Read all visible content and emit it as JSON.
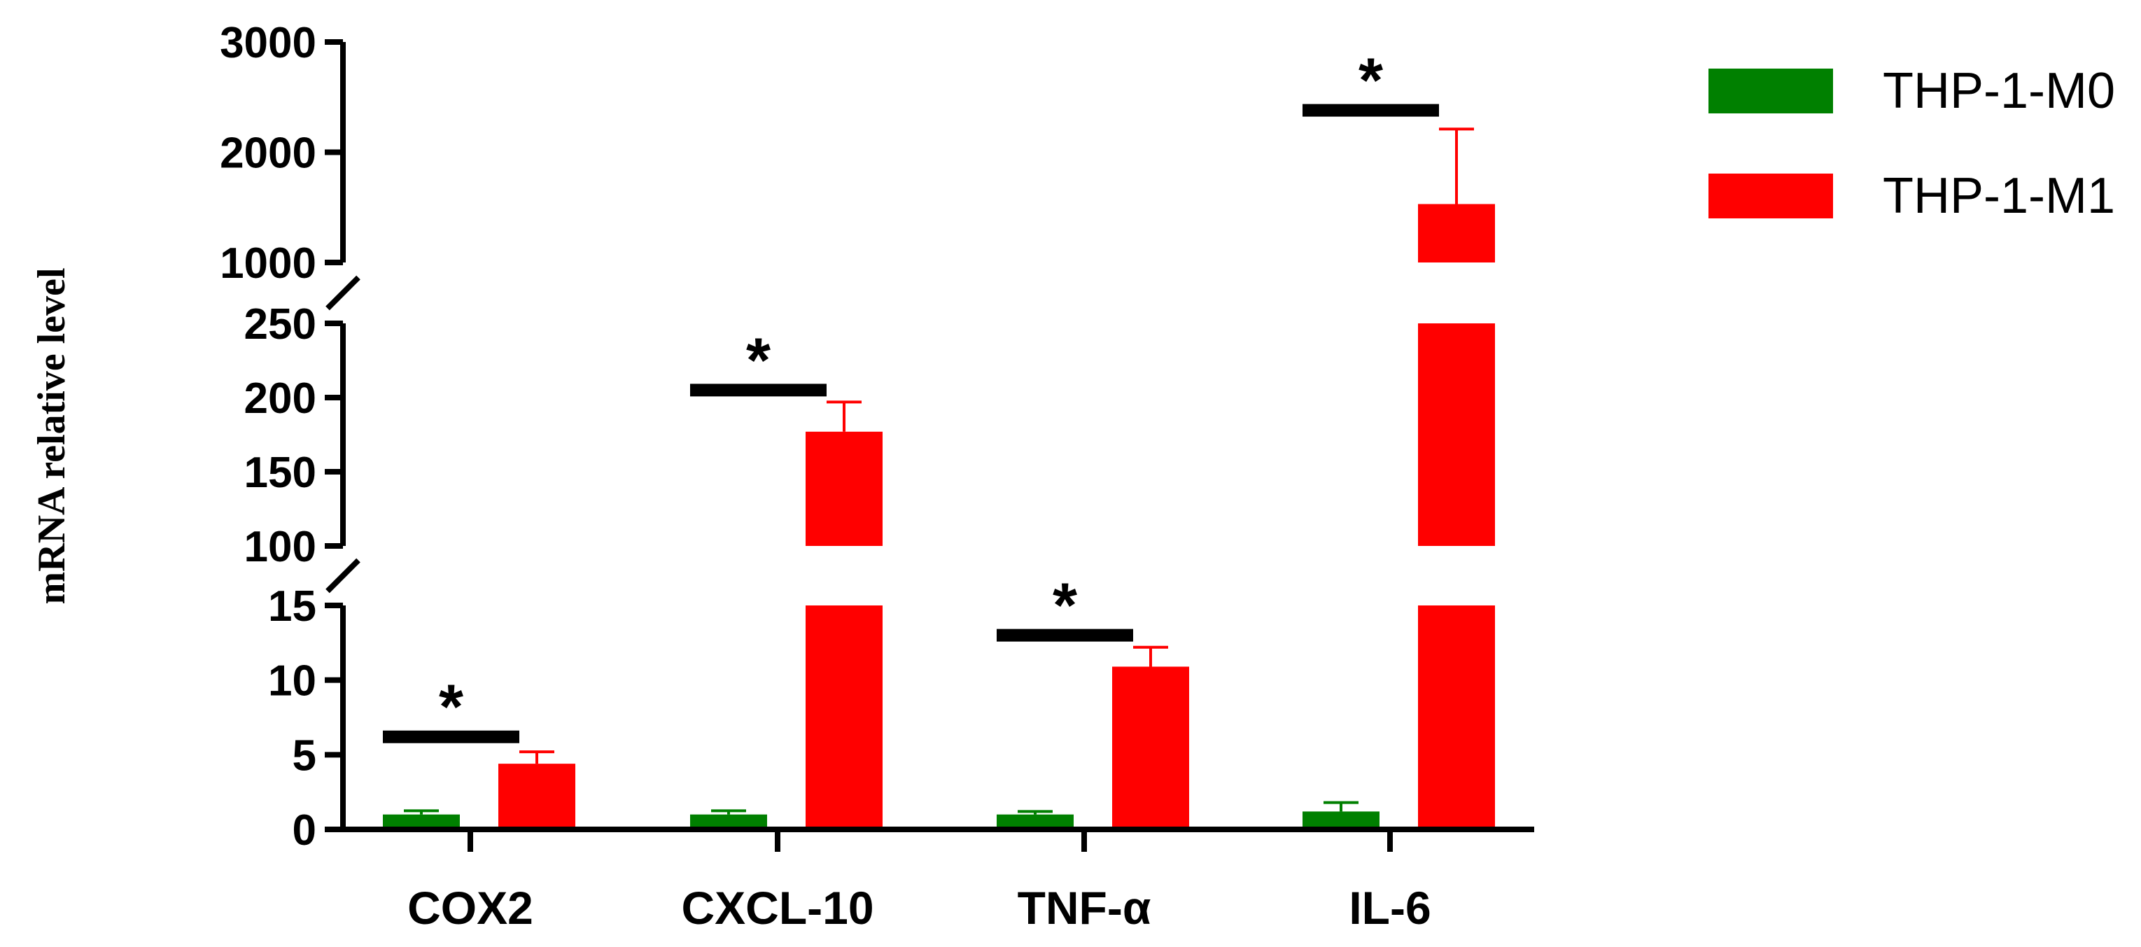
{
  "chart_data": {
    "type": "bar",
    "ylabel": "mRNA relative level",
    "categories": [
      "COX2",
      "CXCL-10",
      "TNF-α",
      "IL-6"
    ],
    "series": [
      {
        "name": "THP-1-M0",
        "color": "#008000",
        "values": [
          1.0,
          1.0,
          1.0,
          1.2
        ],
        "errors": [
          0.25,
          0.25,
          0.2,
          0.6
        ]
      },
      {
        "name": "THP-1-M1",
        "color": "#ff0000",
        "values": [
          4.4,
          177,
          10.9,
          1530
        ],
        "errors": [
          0.8,
          20,
          1.3,
          680
        ]
      }
    ],
    "significance": [
      {
        "category": "COX2",
        "level": 6.2,
        "label": "*"
      },
      {
        "category": "CXCL-10",
        "level": 205,
        "label": "*"
      },
      {
        "category": "TNF-α",
        "level": 13,
        "label": "*"
      },
      {
        "category": "IL-6",
        "level": 2380,
        "label": "*"
      }
    ],
    "axis_segments": [
      {
        "range": [
          0,
          15
        ],
        "ticks": [
          "0",
          "5",
          "10",
          "15"
        ]
      },
      {
        "range": [
          100,
          250
        ],
        "ticks": [
          "100",
          "150",
          "200",
          "250"
        ]
      },
      {
        "range": [
          1000,
          3000
        ],
        "ticks": [
          "1000",
          "2000",
          "3000"
        ]
      }
    ],
    "legend_position": "top-right"
  }
}
